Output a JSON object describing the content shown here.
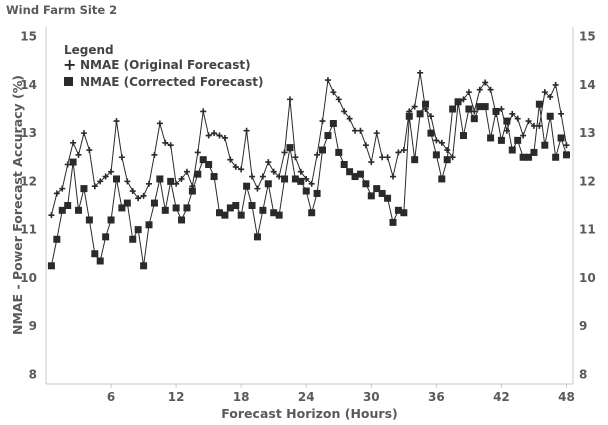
{
  "chart_data": {
    "type": "line",
    "title": "Wind Farm Site 2",
    "xlabel": "Forecast Horizon (Hours)",
    "ylabel": "NMAE - Power Forecast Accuracy (%)",
    "xlim": [
      0,
      48.6
    ],
    "ylim": [
      7.8,
      15.2
    ],
    "x_ticks": [
      6,
      12,
      18,
      24,
      30,
      36,
      42,
      48
    ],
    "y_ticks": [
      8,
      9,
      10,
      11,
      12,
      13,
      14,
      15
    ],
    "grid": false,
    "legend_title": "Legend",
    "legend_position": "top-left",
    "x": [
      0.5,
      1,
      1.5,
      2,
      2.5,
      3,
      3.5,
      4,
      4.5,
      5,
      5.5,
      6,
      6.5,
      7,
      7.5,
      8,
      8.5,
      9,
      9.5,
      10,
      10.5,
      11,
      11.5,
      12,
      12.5,
      13,
      13.5,
      14,
      14.5,
      15,
      15.5,
      16,
      16.5,
      17,
      17.5,
      18,
      18.5,
      19,
      19.5,
      20,
      20.5,
      21,
      21.5,
      22,
      22.5,
      23,
      23.5,
      24,
      24.5,
      25,
      25.5,
      26,
      26.5,
      27,
      27.5,
      28,
      28.5,
      29,
      29.5,
      30,
      30.5,
      31,
      31.5,
      32,
      32.5,
      33,
      33.5,
      34,
      34.5,
      35,
      35.5,
      36,
      36.5,
      37,
      37.5,
      38,
      38.5,
      39,
      39.5,
      40,
      40.5,
      41,
      41.5,
      42,
      42.5,
      43,
      43.5,
      44,
      44.5,
      45,
      45.5,
      46,
      46.5,
      47,
      47.5,
      48
    ],
    "series": [
      {
        "name": "NMAE (Original Forecast)",
        "marker": "plus",
        "color": "#2a2a2a",
        "values": [
          11.3,
          11.75,
          11.85,
          12.35,
          12.8,
          12.55,
          13.0,
          12.65,
          11.9,
          12.0,
          12.1,
          12.2,
          13.25,
          12.5,
          12.0,
          11.8,
          11.65,
          11.7,
          11.95,
          12.55,
          13.2,
          12.8,
          12.75,
          11.95,
          12.05,
          12.2,
          11.9,
          12.6,
          13.45,
          12.95,
          13.0,
          12.95,
          12.9,
          12.45,
          12.3,
          12.25,
          13.05,
          12.1,
          11.85,
          12.1,
          12.4,
          12.2,
          12.1,
          12.6,
          13.7,
          12.5,
          12.2,
          12.05,
          11.95,
          12.55,
          13.25,
          14.1,
          13.85,
          13.7,
          13.45,
          13.3,
          13.05,
          13.05,
          12.75,
          12.4,
          13.0,
          12.5,
          12.5,
          12.1,
          12.6,
          12.65,
          13.45,
          13.55,
          14.25,
          13.5,
          13.35,
          12.85,
          12.8,
          12.65,
          12.5,
          13.6,
          13.7,
          13.85,
          13.45,
          13.9,
          14.05,
          13.9,
          13.4,
          13.5,
          13.05,
          13.4,
          13.3,
          12.95,
          13.25,
          13.15,
          13.15,
          13.85,
          13.75,
          14.0,
          13.4,
          12.75
        ]
      },
      {
        "name": "NMAE (Corrected Forecast)",
        "marker": "square",
        "color": "#2a2a2a",
        "values": [
          10.25,
          10.8,
          11.4,
          11.5,
          12.4,
          11.4,
          11.85,
          11.2,
          10.5,
          10.35,
          10.85,
          11.2,
          12.05,
          11.45,
          11.55,
          10.8,
          11.0,
          10.25,
          11.1,
          11.55,
          12.05,
          11.4,
          12.0,
          11.45,
          11.2,
          11.45,
          11.8,
          12.15,
          12.45,
          12.35,
          12.1,
          11.35,
          11.3,
          11.45,
          11.5,
          11.3,
          11.9,
          11.5,
          10.85,
          11.4,
          11.95,
          11.35,
          11.3,
          12.05,
          12.7,
          12.05,
          12.0,
          11.8,
          11.35,
          11.75,
          12.65,
          12.95,
          13.2,
          12.6,
          12.35,
          12.2,
          12.1,
          12.15,
          11.95,
          11.7,
          11.85,
          11.75,
          11.65,
          11.15,
          11.4,
          11.35,
          13.35,
          12.45,
          13.4,
          13.6,
          13.0,
          12.55,
          12.05,
          12.45,
          13.5,
          13.65,
          12.95,
          13.5,
          13.3,
          13.55,
          13.55,
          12.9,
          13.45,
          12.85,
          13.25,
          12.65,
          12.85,
          12.5,
          12.5,
          12.6,
          13.6,
          12.75,
          13.35,
          12.5,
          12.9,
          12.55
        ]
      }
    ]
  }
}
